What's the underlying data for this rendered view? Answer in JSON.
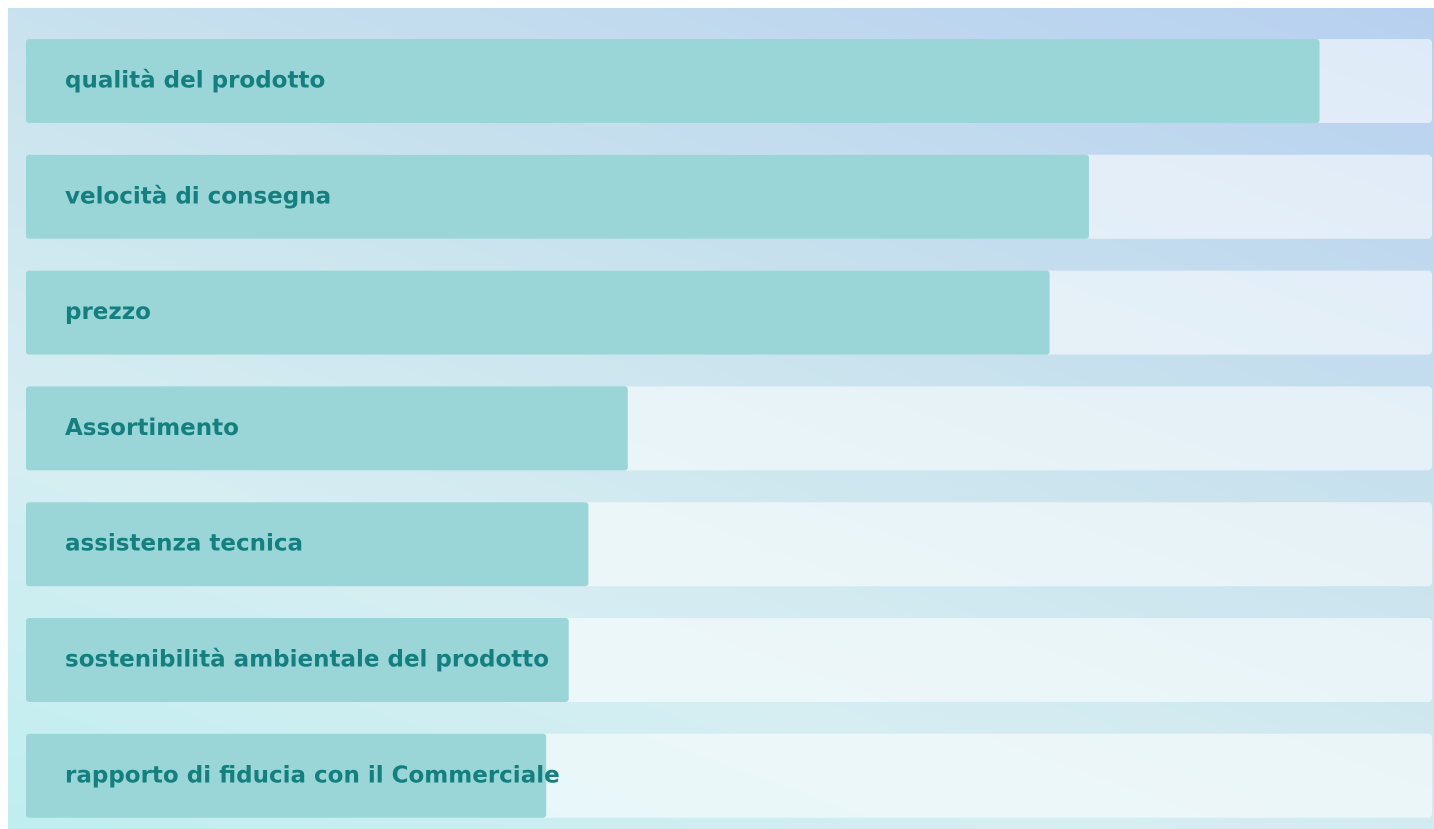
{
  "chart_data": {
    "type": "bar",
    "orientation": "horizontal",
    "categories": [
      "qualità del prodotto",
      "velocità di consegna",
      "prezzo",
      "Assortimento",
      "assistenza tecnica",
      "sostenibilità ambientale del prodotto",
      "rapporto di fiducia con il Commerciale"
    ],
    "values": [
      92,
      75.6,
      72.8,
      42.8,
      40,
      38.6,
      37
    ],
    "color": "#9ad6d7",
    "xlim": [
      0,
      100
    ]
  }
}
